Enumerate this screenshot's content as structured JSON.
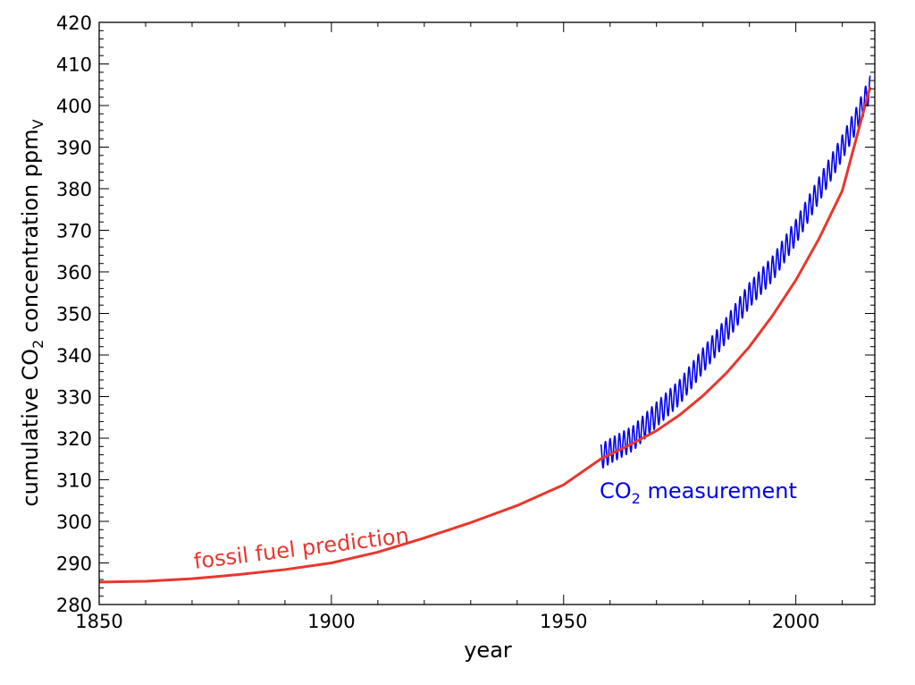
{
  "chart_data": {
    "type": "line",
    "xlabel": "year",
    "ylabel": {
      "prefix": "cumulative CO",
      "sub": "2",
      "mid": " concentration  ppm",
      "sub2": "V"
    },
    "xlim": [
      1850,
      2017
    ],
    "ylim": [
      280,
      420
    ],
    "x_ticks": [
      1850,
      1900,
      1950,
      2000
    ],
    "y_ticks": [
      280,
      290,
      300,
      310,
      320,
      330,
      340,
      350,
      360,
      370,
      380,
      390,
      400,
      410,
      420
    ],
    "grid": false,
    "annotations": {
      "fossil": "fossil fuel prediction",
      "measurement": {
        "prefix": "CO",
        "sub": "2",
        "suffix": " measurement"
      }
    },
    "series": [
      {
        "id": "fossil",
        "color": "#e8372e",
        "x": [
          1850,
          1860,
          1870,
          1880,
          1890,
          1900,
          1910,
          1920,
          1930,
          1940,
          1950,
          1958,
          1965,
          1970,
          1975,
          1980,
          1985,
          1990,
          1995,
          2000,
          2005,
          2010,
          2016
        ],
        "y": [
          285.4,
          285.6,
          286.2,
          287.2,
          288.4,
          290.0,
          292.6,
          296.0,
          299.7,
          303.8,
          308.8,
          315.0,
          318.8,
          321.8,
          325.6,
          330.2,
          335.6,
          342.0,
          349.5,
          358.0,
          368.0,
          379.5,
          404.5
        ]
      },
      {
        "id": "measured",
        "color": "#0000ee",
        "seasonal_amplitude": 3,
        "x": [
          1958,
          1960,
          1965,
          1970,
          1975,
          1980,
          1985,
          1990,
          1995,
          2000,
          2005,
          2010,
          2013,
          2016
        ],
        "y": [
          315.5,
          316.9,
          320.0,
          325.7,
          331.1,
          338.7,
          346.0,
          354.4,
          360.8,
          369.6,
          379.8,
          389.9,
          396.5,
          404.2
        ]
      }
    ]
  }
}
